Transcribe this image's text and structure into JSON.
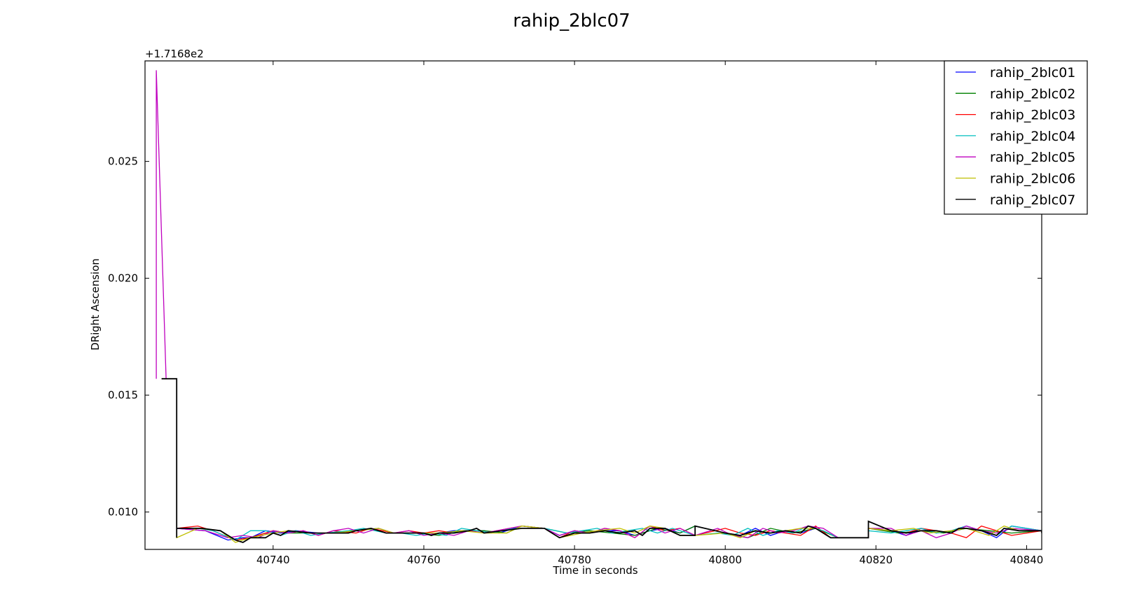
{
  "chart_data": {
    "type": "line",
    "title": "rahip_2blc07",
    "xlabel": "Time in seconds",
    "ylabel": "DRight Ascension",
    "y_offset_label": "+1.7168e2",
    "xlim": [
      40723,
      40842
    ],
    "ylim": [
      0.0084,
      0.0293
    ],
    "x_ticks": [
      40740,
      40760,
      40780,
      40800,
      40820,
      40840
    ],
    "y_ticks": [
      0.01,
      0.015,
      0.02,
      0.025
    ],
    "x_tick_labels": [
      "40740",
      "40760",
      "40780",
      "40800",
      "40820",
      "40840"
    ],
    "y_tick_labels": [
      "0.010",
      "0.015",
      "0.020",
      "0.025"
    ],
    "grid": false,
    "legend_position": "top-right",
    "series": [
      {
        "name": "rahip_2blc01",
        "color": "#0000ff",
        "x": [
          40725.2,
          40727.2,
          40727.2,
          40731,
          40734,
          40736,
          40737,
          40739,
          40741,
          40743,
          40746,
          40748,
          40751,
          40753,
          40755,
          40758,
          40760,
          40762,
          40764,
          40766,
          40768,
          40770,
          40773,
          40776,
          40778,
          40780,
          40782,
          40784,
          40786,
          40788,
          40790,
          40792,
          40794,
          40796,
          40800,
          40802,
          40804,
          40806,
          40808,
          40810,
          40812,
          40814,
          40819,
          40819,
          40822,
          40824,
          40826,
          40828,
          40830,
          40832,
          40834,
          40836,
          40838,
          40842
        ],
        "values": [
          0.0157,
          0.0157,
          0.0093,
          0.0092,
          0.0088,
          0.0089,
          0.0089,
          0.0092,
          0.0091,
          0.0092,
          0.0091,
          0.0091,
          0.0092,
          0.0093,
          0.0091,
          0.0091,
          0.0091,
          0.0091,
          0.0092,
          0.0092,
          0.0092,
          0.0091,
          0.0094,
          0.0093,
          0.009,
          0.0092,
          0.0091,
          0.0092,
          0.0092,
          0.009,
          0.0092,
          0.0093,
          0.0091,
          0.0094,
          0.0091,
          0.009,
          0.0093,
          0.009,
          0.0092,
          0.0091,
          0.0093,
          0.0089,
          0.0089,
          0.0093,
          0.0092,
          0.009,
          0.0093,
          0.0091,
          0.0092,
          0.0094,
          0.0092,
          0.0089,
          0.0094,
          0.0092
        ]
      },
      {
        "name": "rahip_2blc02",
        "color": "#008000",
        "x": [
          40725.2,
          40727.2,
          40727.2,
          40730,
          40733,
          40735,
          40737,
          40740,
          40742,
          40745,
          40748,
          40751,
          40754,
          40756,
          40759,
          40762,
          40765,
          40768,
          40771,
          40773,
          40776,
          40779,
          40782,
          40785,
          40788,
          40791,
          40794,
          40796,
          40800,
          40803,
          40806,
          40809,
          40812,
          40815,
          40819,
          40819,
          40823,
          40826,
          40829,
          40832,
          40835,
          40838,
          40842
        ],
        "values": [
          0.0157,
          0.0157,
          0.0093,
          0.0093,
          0.0092,
          0.0088,
          0.0089,
          0.0092,
          0.0091,
          0.0091,
          0.0091,
          0.0092,
          0.0093,
          0.0091,
          0.0091,
          0.009,
          0.0092,
          0.0092,
          0.0091,
          0.0094,
          0.0093,
          0.0091,
          0.0092,
          0.0091,
          0.009,
          0.0093,
          0.0091,
          0.0094,
          0.0091,
          0.0089,
          0.0093,
          0.0091,
          0.0093,
          0.0089,
          0.0089,
          0.0093,
          0.0091,
          0.0092,
          0.0091,
          0.0093,
          0.0092,
          0.0091,
          0.0092
        ]
      },
      {
        "name": "rahip_2blc03",
        "color": "#ff0000",
        "x": [
          40725.2,
          40727.2,
          40727.2,
          40730,
          40732,
          40735,
          40737,
          40740,
          40742,
          40744,
          40746,
          40748,
          40751,
          40753,
          40756,
          40758,
          40760,
          40762,
          40764,
          40766,
          40768,
          40773,
          40776,
          40778,
          40780,
          40782,
          40784,
          40786,
          40788,
          40790,
          40792,
          40794,
          40796,
          40800,
          40802,
          40804,
          40806,
          40808,
          40810,
          40812,
          40814,
          40819,
          40819,
          40822,
          40824,
          40826,
          40828,
          40830,
          40832,
          40834,
          40836,
          40838,
          40842
        ],
        "values": [
          0.0157,
          0.0157,
          0.0093,
          0.0094,
          0.0092,
          0.0088,
          0.0089,
          0.0092,
          0.0091,
          0.0092,
          0.009,
          0.0092,
          0.0091,
          0.0093,
          0.0091,
          0.0092,
          0.0091,
          0.0092,
          0.0091,
          0.0092,
          0.0091,
          0.0094,
          0.0093,
          0.0089,
          0.0092,
          0.0091,
          0.0093,
          0.0092,
          0.0089,
          0.0094,
          0.0092,
          0.0093,
          0.009,
          0.0093,
          0.0091,
          0.009,
          0.0092,
          0.0091,
          0.009,
          0.0094,
          0.0089,
          0.0089,
          0.0093,
          0.0092,
          0.0091,
          0.0093,
          0.0092,
          0.0091,
          0.0089,
          0.0094,
          0.0092,
          0.009,
          0.0092
        ]
      },
      {
        "name": "rahip_2blc04",
        "color": "#00bfbf",
        "x": [
          40725.2,
          40727.2,
          40727.2,
          40730,
          40732,
          40735,
          40737,
          40739,
          40741,
          40743,
          40745,
          40747,
          40750,
          40752,
          40755,
          40757,
          40759,
          40761,
          40763,
          40765,
          40767,
          40769,
          40773,
          40776,
          40779,
          40781,
          40783,
          40785,
          40787,
          40789,
          40791,
          40793,
          40796,
          40799,
          40801,
          40803,
          40805,
          40807,
          40809,
          40811,
          40813,
          40815,
          40819,
          40819,
          40822,
          40824,
          40826,
          40828,
          40830,
          40832,
          40834,
          40836,
          40838,
          40842
        ],
        "values": [
          0.0157,
          0.0157,
          0.0093,
          0.0093,
          0.0092,
          0.0088,
          0.0092,
          0.0092,
          0.009,
          0.0092,
          0.009,
          0.0091,
          0.0092,
          0.0093,
          0.0091,
          0.0091,
          0.009,
          0.0091,
          0.009,
          0.0093,
          0.0092,
          0.0091,
          0.0094,
          0.0093,
          0.0091,
          0.0092,
          0.0093,
          0.0091,
          0.0092,
          0.0093,
          0.0091,
          0.0093,
          0.009,
          0.0091,
          0.009,
          0.0093,
          0.009,
          0.0092,
          0.0091,
          0.0094,
          0.0092,
          0.0089,
          0.0089,
          0.0092,
          0.0091,
          0.0092,
          0.0093,
          0.0091,
          0.0092,
          0.0094,
          0.0092,
          0.009,
          0.0094,
          0.0092
        ]
      },
      {
        "name": "rahip_2blc05",
        "color": "#bf00bf",
        "x": [
          40724.5,
          40724.5,
          40725.8,
          40727.2,
          40727.2,
          40731,
          40734,
          40736,
          40738,
          40740,
          40742,
          40744,
          40746,
          40748,
          40750,
          40752,
          40754,
          40756,
          40758,
          40760,
          40762,
          40764,
          40766,
          40768,
          40773,
          40776,
          40778,
          40780,
          40782,
          40784,
          40786,
          40788,
          40790,
          40792,
          40794,
          40796,
          40799,
          40801,
          40803,
          40805,
          40807,
          40809,
          40811,
          40813,
          40815,
          40819,
          40819,
          40822,
          40824,
          40826,
          40828,
          40830,
          40832,
          40834,
          40836,
          40838,
          40842
        ],
        "values": [
          0.0157,
          0.0289,
          0.0157,
          0.0157,
          0.0093,
          0.0092,
          0.0089,
          0.009,
          0.0089,
          0.0092,
          0.0091,
          0.0092,
          0.009,
          0.0092,
          0.0093,
          0.0091,
          0.0093,
          0.0091,
          0.0092,
          0.009,
          0.0091,
          0.009,
          0.0092,
          0.0091,
          0.0094,
          0.0093,
          0.009,
          0.0092,
          0.0091,
          0.0093,
          0.0092,
          0.0089,
          0.0094,
          0.0091,
          0.0093,
          0.009,
          0.0093,
          0.009,
          0.0089,
          0.0093,
          0.0091,
          0.0092,
          0.0094,
          0.0093,
          0.0089,
          0.0089,
          0.0093,
          0.0093,
          0.009,
          0.0092,
          0.0089,
          0.0091,
          0.0094,
          0.0092,
          0.0091,
          0.0093,
          0.0092
        ]
      },
      {
        "name": "rahip_2blc06",
        "color": "#bfbf00",
        "x": [
          40725.2,
          40727.2,
          40727.2,
          40730,
          40733,
          40735,
          40737,
          40740,
          40742,
          40745,
          40748,
          40751,
          40754,
          40756,
          40759,
          40762,
          40765,
          40768,
          40771,
          40773,
          40776,
          40778,
          40781,
          40783,
          40786,
          40788,
          40790,
          40792,
          40794,
          40796,
          40800,
          40802,
          40804,
          40806,
          40808,
          40810,
          40812,
          40814,
          40819,
          40819,
          40822,
          40825,
          40827,
          40830,
          40832,
          40835,
          40837,
          40839,
          40842
        ],
        "values": [
          0.0157,
          0.0157,
          0.0089,
          0.0093,
          0.0092,
          0.0087,
          0.0089,
          0.0091,
          0.0092,
          0.0091,
          0.0091,
          0.0092,
          0.0093,
          0.0091,
          0.0091,
          0.0091,
          0.0092,
          0.0091,
          0.0091,
          0.0094,
          0.0093,
          0.0089,
          0.0091,
          0.0092,
          0.0093,
          0.0091,
          0.0094,
          0.0093,
          0.009,
          0.009,
          0.0091,
          0.0089,
          0.0092,
          0.0091,
          0.0092,
          0.0093,
          0.0093,
          0.0089,
          0.0089,
          0.0093,
          0.0092,
          0.0093,
          0.0091,
          0.0092,
          0.0093,
          0.009,
          0.0094,
          0.0092,
          0.0092
        ]
      },
      {
        "name": "rahip_2blc07",
        "color": "#000000",
        "x": [
          40725.2,
          40727.2,
          40727.2,
          40727.2,
          40730,
          40730.5,
          40733,
          40735,
          40736,
          40737,
          40739,
          40740,
          40741,
          40742,
          40745,
          40747,
          40750,
          40751,
          40753,
          40755,
          40758,
          40760,
          40761,
          40762,
          40764,
          40766,
          40767,
          40768,
          40773,
          40776,
          40778,
          40780,
          40782,
          40784,
          40786,
          40788,
          40789,
          40790,
          40792,
          40794,
          40796,
          40796,
          40800,
          40802,
          40804,
          40806,
          40808,
          40810,
          40811,
          40812,
          40814,
          40819,
          40819,
          40822,
          40824,
          40826,
          40828,
          40830,
          40831,
          40832,
          40834,
          40836,
          40837,
          40839,
          40842,
          40842
        ],
        "values": [
          0.0157,
          0.0157,
          0.0089,
          0.0093,
          0.0093,
          0.0093,
          0.0092,
          0.0088,
          0.0087,
          0.0089,
          0.0089,
          0.0091,
          0.009,
          0.0092,
          0.0091,
          0.0091,
          0.0091,
          0.0092,
          0.0093,
          0.0091,
          0.0091,
          0.0091,
          0.009,
          0.0091,
          0.0091,
          0.0092,
          0.0093,
          0.0091,
          0.0093,
          0.0093,
          0.0089,
          0.0091,
          0.0091,
          0.0092,
          0.0091,
          0.0092,
          0.009,
          0.0093,
          0.0093,
          0.009,
          0.009,
          0.0094,
          0.0091,
          0.009,
          0.0092,
          0.0091,
          0.0092,
          0.0091,
          0.0094,
          0.0093,
          0.0089,
          0.0089,
          0.0096,
          0.0092,
          0.0091,
          0.0092,
          0.0092,
          0.0091,
          0.0093,
          0.0093,
          0.0092,
          0.009,
          0.0093,
          0.0092,
          0.0092,
          0.0091
        ]
      }
    ]
  }
}
